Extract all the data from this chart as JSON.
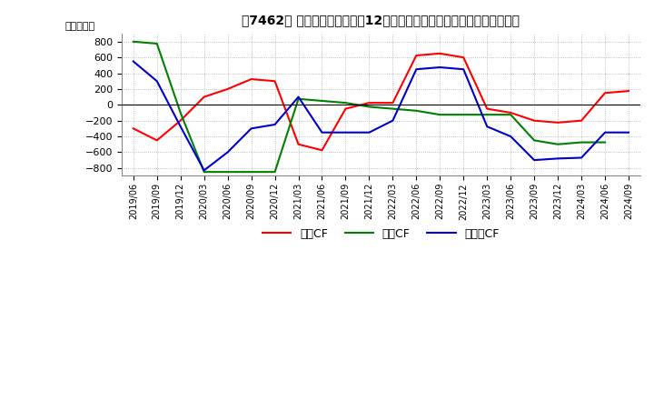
{
  "title": "【7462】 キャッシュフローの12か月移動合計の対前年同期増減額の推移",
  "ylabel": "（百万円）",
  "ylim": [
    -900,
    900
  ],
  "yticks": [
    -800,
    -600,
    -400,
    -200,
    0,
    200,
    400,
    600,
    800
  ],
  "background_color": "#ffffff",
  "grid_color": "#aaaaaa",
  "x_labels": [
    "2019/06",
    "2019/09",
    "2019/12",
    "2020/03",
    "2020/06",
    "2020/09",
    "2020/12",
    "2021/03",
    "2021/06",
    "2021/09",
    "2021/12",
    "2022/03",
    "2022/06",
    "2022/09",
    "2022/12",
    "2023/03",
    "2023/06",
    "2023/09",
    "2023/12",
    "2024/03",
    "2024/06",
    "2024/09"
  ],
  "operating_cf": [
    -300,
    -450,
    -200,
    100,
    200,
    325,
    300,
    -500,
    -575,
    -50,
    25,
    25,
    625,
    650,
    600,
    -50,
    -100,
    -200,
    -225,
    -200,
    150,
    175
  ],
  "investing_cf": [
    800,
    775,
    -100,
    -850,
    -850,
    -850,
    -850,
    75,
    50,
    25,
    -25,
    -50,
    -75,
    -125,
    -125,
    -125,
    -125,
    -450,
    -500,
    -475,
    -475,
    null
  ],
  "free_cf": [
    550,
    300,
    -275,
    -830,
    -600,
    -300,
    -250,
    100,
    -350,
    -350,
    -350,
    -200,
    450,
    475,
    450,
    -275,
    -400,
    -700,
    -680,
    -670,
    -350,
    -350
  ],
  "op_color": "#ff0000",
  "inv_color": "#008000",
  "free_color": "#0000cc",
  "legend_labels": [
    "営業CF",
    "投資CF",
    "フリーCF"
  ]
}
